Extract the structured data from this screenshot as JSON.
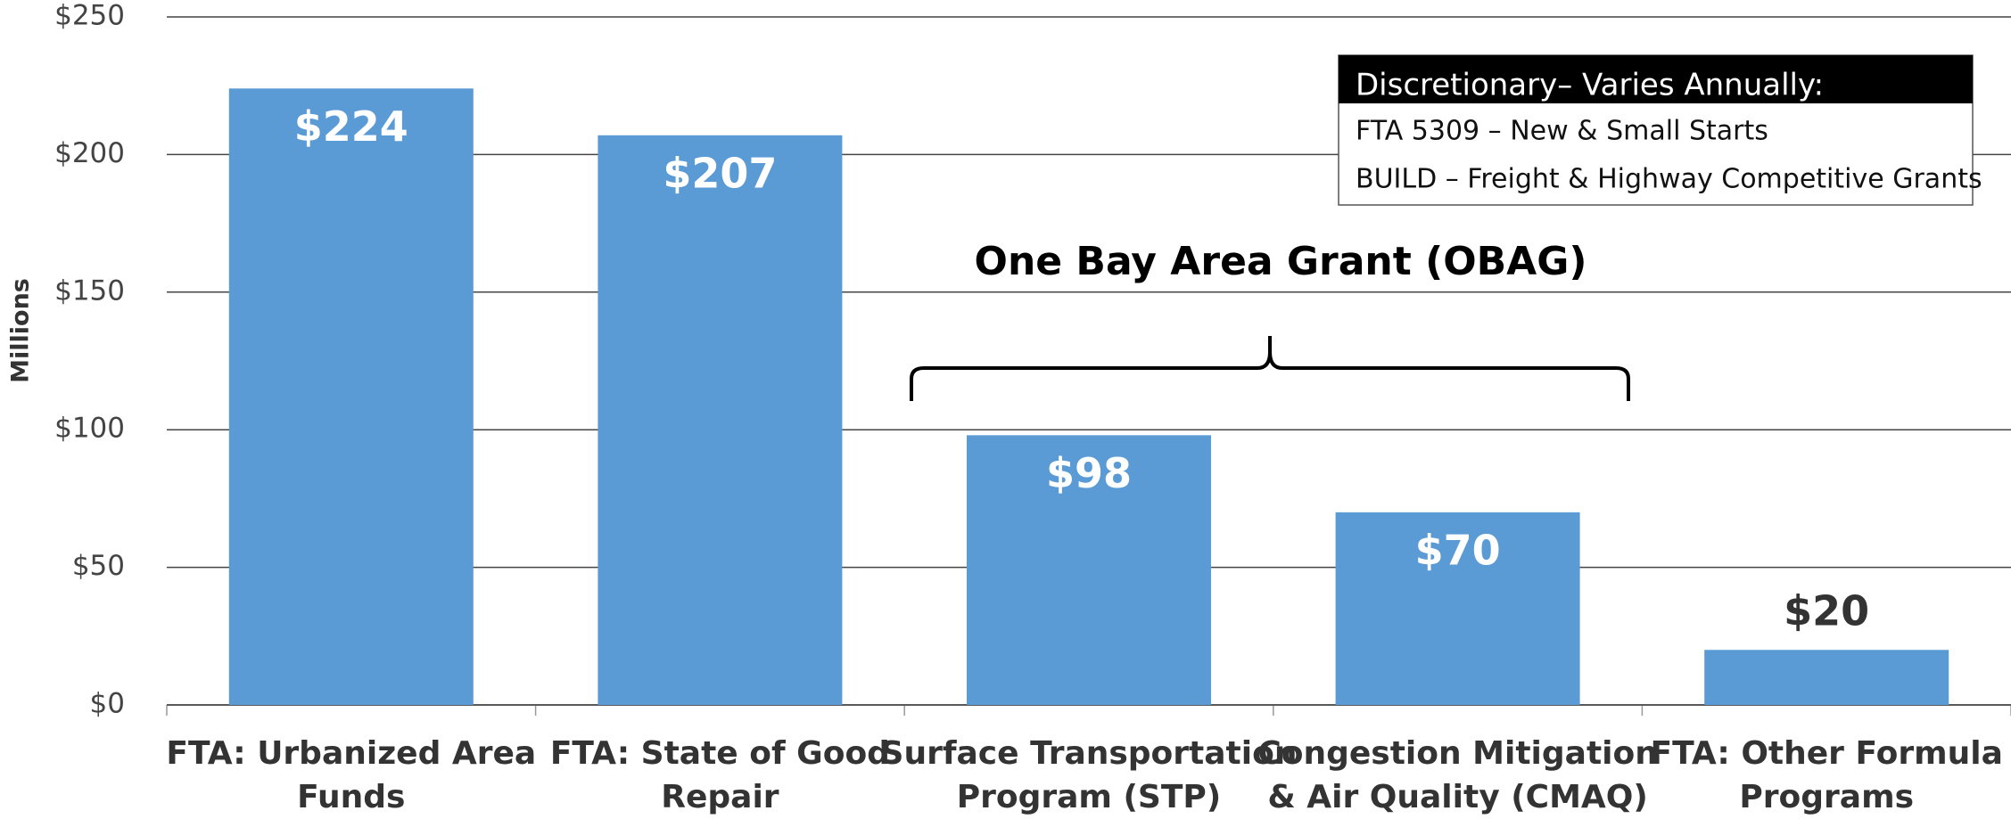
{
  "chart_data": {
    "type": "bar",
    "y_label": "Millions",
    "categories": [
      [
        "FTA: Urbanized Area",
        "Funds"
      ],
      [
        "FTA: State of Good",
        "Repair"
      ],
      [
        "Surface Transportation",
        "Program (STP)"
      ],
      [
        "Congestion Mitigation",
        "& Air Quality (CMAQ)"
      ],
      [
        "FTA: Other Formula",
        "Programs"
      ]
    ],
    "values": [
      224,
      207,
      98,
      70,
      20
    ],
    "value_labels": [
      "$224",
      "$207",
      "$98",
      "$70",
      "$20"
    ],
    "color": "#5b9bd5",
    "ylim": [
      0,
      250
    ],
    "yticks": [
      {
        "value": 0,
        "label": "$0"
      },
      {
        "value": 50,
        "label": "$50"
      },
      {
        "value": 100,
        "label": "$100"
      },
      {
        "value": 150,
        "label": "$150"
      },
      {
        "value": 200,
        "label": "$200"
      },
      {
        "value": 250,
        "label": "$250"
      }
    ],
    "grid": true,
    "annotation": "One Bay Area Grant (OBAG)",
    "callout": {
      "title": "Discretionary– Varies Annually:",
      "lines": [
        "FTA 5309 – New & Small Starts",
        "BUILD – Freight & Highway Competitive Grants"
      ]
    }
  }
}
